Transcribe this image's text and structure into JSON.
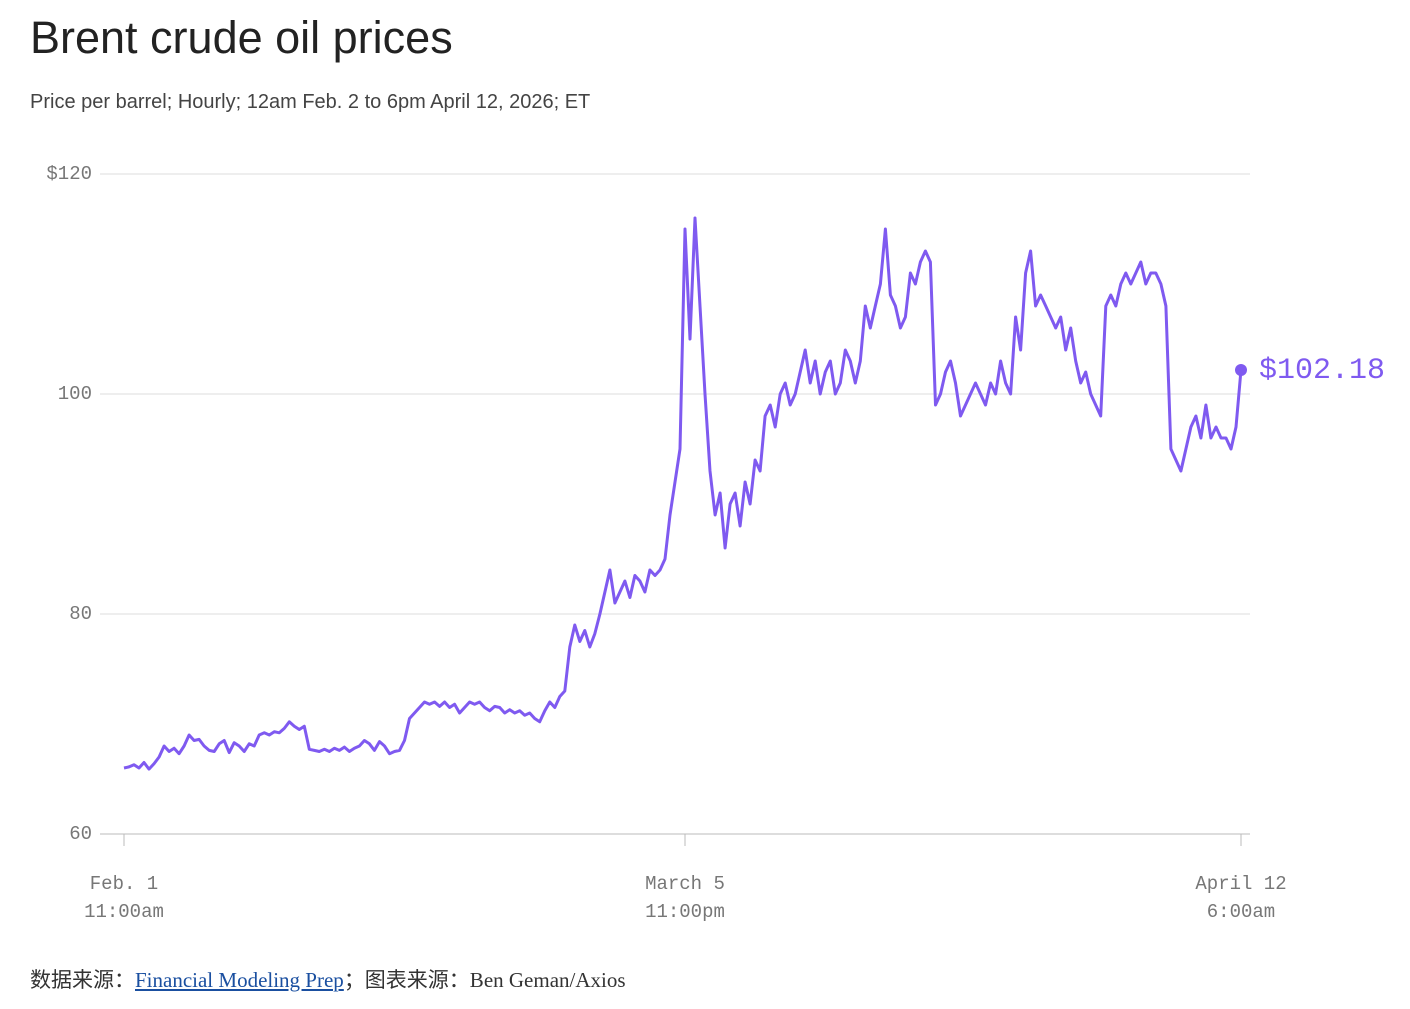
{
  "chart_data": {
    "type": "line",
    "title": "Brent crude oil prices",
    "subtitle": "Price per barrel; Hourly; 12am Feb. 2 to 6pm April 12, 2026; ET",
    "color": "#7f5af0",
    "ylim": [
      60,
      120
    ],
    "yticks": [
      60,
      80,
      100,
      {
        "value": 120,
        "label": "$120"
      }
    ],
    "grid": true,
    "categories": [
      "Feb. 1\n11:00am",
      null,
      null,
      null,
      null,
      null,
      null,
      null,
      null,
      null,
      null,
      null,
      null,
      null,
      null,
      null,
      null,
      null,
      null,
      null,
      null,
      null,
      null,
      null,
      null,
      null,
      null,
      null,
      null,
      null,
      null,
      null,
      null,
      null,
      null,
      null,
      null,
      null,
      null,
      null,
      null,
      null,
      null,
      null,
      null,
      null,
      null,
      null,
      null,
      null,
      null,
      null,
      null,
      null,
      null,
      null,
      null,
      null,
      null,
      null,
      null,
      null,
      null,
      null,
      null,
      null,
      null,
      null,
      null,
      null,
      null,
      null,
      null,
      null,
      null,
      null,
      null,
      null,
      null,
      null,
      null,
      null,
      null,
      null,
      null,
      null,
      null,
      null,
      null,
      null,
      null,
      null,
      null,
      null,
      null,
      null,
      null,
      null,
      null,
      null,
      null,
      null,
      null,
      null,
      null,
      null,
      null,
      null,
      null,
      null,
      null,
      null,
      "March 5\n11:00pm",
      null,
      null,
      null,
      null,
      null,
      null,
      null,
      null,
      null,
      null,
      null,
      null,
      null,
      null,
      null,
      null,
      null,
      null,
      null,
      null,
      null,
      null,
      null,
      null,
      null,
      null,
      null,
      null,
      null,
      null,
      null,
      null,
      null,
      null,
      null,
      null,
      null,
      null,
      null,
      null,
      null,
      null,
      null,
      null,
      null,
      null,
      null,
      null,
      null,
      null,
      null,
      null,
      null,
      null,
      null,
      null,
      null,
      null,
      null,
      null,
      null,
      null,
      null,
      null,
      null,
      null,
      null,
      null,
      null,
      null,
      null,
      null,
      null,
      null,
      null,
      null,
      null,
      null,
      null,
      null,
      null,
      null,
      null,
      null,
      null,
      null,
      null,
      null,
      null,
      null,
      null,
      null,
      null,
      null,
      null,
      null,
      null,
      null,
      null,
      null,
      null,
      null,
      null,
      null,
      null,
      null,
      null,
      null,
      null,
      null,
      "April 12\n6:00am"
    ],
    "values": [
      66,
      66.1,
      66.3,
      66,
      66.5,
      65.9,
      66.4,
      67,
      68,
      67.5,
      67.8,
      67.3,
      68,
      69,
      68.5,
      68.6,
      68,
      67.6,
      67.5,
      68.2,
      68.5,
      67.4,
      68.3,
      68,
      67.5,
      68.2,
      68,
      69,
      69.2,
      69,
      69.3,
      69.2,
      69.6,
      70.2,
      69.8,
      69.5,
      69.8,
      67.7,
      67.6,
      67.5,
      67.7,
      67.5,
      67.8,
      67.6,
      67.9,
      67.5,
      67.8,
      68,
      68.5,
      68.2,
      67.6,
      68.4,
      68,
      67.3,
      67.5,
      67.6,
      68.5,
      70.5,
      71,
      71.5,
      72,
      71.8,
      72,
      71.6,
      72,
      71.5,
      71.8,
      71,
      71.5,
      72,
      71.8,
      72,
      71.5,
      71.2,
      71.6,
      71.5,
      71,
      71.3,
      71,
      71.2,
      70.8,
      71,
      70.5,
      70.2,
      71.2,
      72,
      71.5,
      72.5,
      73,
      77,
      79,
      77.5,
      78.5,
      77,
      78.2,
      80,
      82,
      84,
      81,
      82,
      83,
      81.5,
      83.5,
      83,
      82,
      84,
      83.5,
      84,
      85,
      89,
      92,
      95,
      115,
      105,
      116,
      108,
      100,
      93,
      89,
      91,
      86,
      90,
      91,
      88,
      92,
      90,
      94,
      93,
      98,
      99,
      97,
      100,
      101,
      99,
      100,
      102,
      104,
      101,
      103,
      100,
      102,
      103,
      100,
      101,
      104,
      103,
      101,
      103,
      108,
      106,
      108,
      110,
      115,
      109,
      108,
      106,
      107,
      111,
      110,
      112,
      113,
      112,
      99,
      100,
      102,
      103,
      101,
      98,
      99,
      100,
      101,
      100,
      99,
      101,
      100,
      103,
      101,
      100,
      107,
      104,
      111,
      113,
      108,
      109,
      108,
      107,
      106,
      107,
      104,
      106,
      103,
      101,
      102,
      100,
      99,
      98,
      108,
      109,
      108,
      110,
      111,
      110,
      111,
      112,
      110,
      111,
      111,
      110,
      108,
      95,
      94,
      93,
      95,
      97,
      98,
      96,
      99,
      96,
      97,
      96,
      96,
      95,
      97,
      102.18
    ],
    "value_labels": [
      null,
      null,
      null,
      null,
      null,
      null,
      null,
      null,
      null,
      null,
      null,
      null,
      null,
      null,
      null,
      null,
      null,
      null,
      null,
      null,
      null,
      null,
      null,
      null,
      null,
      null,
      null,
      null,
      null,
      null,
      null,
      null,
      null,
      null,
      null,
      null,
      null,
      null,
      null,
      null,
      null,
      null,
      null,
      null,
      null,
      null,
      null,
      null,
      null,
      null,
      null,
      null,
      null,
      null,
      null,
      null,
      null,
      null,
      null,
      null,
      null,
      null,
      null,
      null,
      null,
      null,
      null,
      null,
      null,
      null,
      null,
      null,
      null,
      null,
      null,
      null,
      null,
      null,
      null,
      null,
      null,
      null,
      null,
      null,
      null,
      null,
      null,
      null,
      null,
      null,
      null,
      null,
      null,
      null,
      null,
      null,
      null,
      null,
      null,
      null,
      null,
      null,
      null,
      null,
      null,
      null,
      null,
      null,
      null,
      null,
      null,
      null,
      null,
      null,
      null,
      null,
      null,
      null,
      null,
      null,
      null,
      null,
      null,
      null,
      null,
      null,
      null,
      null,
      null,
      null,
      null,
      null,
      null,
      null,
      null,
      null,
      null,
      null,
      null,
      null,
      null,
      null,
      null,
      null,
      null,
      null,
      null,
      null,
      null,
      null,
      null,
      null,
      null,
      null,
      null,
      null,
      null,
      null,
      null,
      null,
      null,
      null,
      null,
      null,
      null,
      null,
      null,
      null,
      null,
      null,
      null,
      null,
      null,
      null,
      null,
      null,
      null,
      null,
      null,
      null,
      null,
      null,
      null,
      null,
      null,
      null,
      null,
      null,
      null,
      null,
      null,
      null,
      null,
      null,
      null,
      null,
      null,
      null,
      null,
      null,
      null,
      null,
      null,
      null,
      null,
      null,
      null,
      null,
      null,
      null,
      null,
      null,
      null,
      null,
      null,
      null,
      null,
      null,
      null,
      null,
      null,
      null,
      null,
      "$102.18"
    ],
    "source": {
      "prefix": "数据来源：",
      "link": "Financial Modeling Prep",
      "suffix": "；图表来源：Ben Geman/Axios"
    }
  }
}
